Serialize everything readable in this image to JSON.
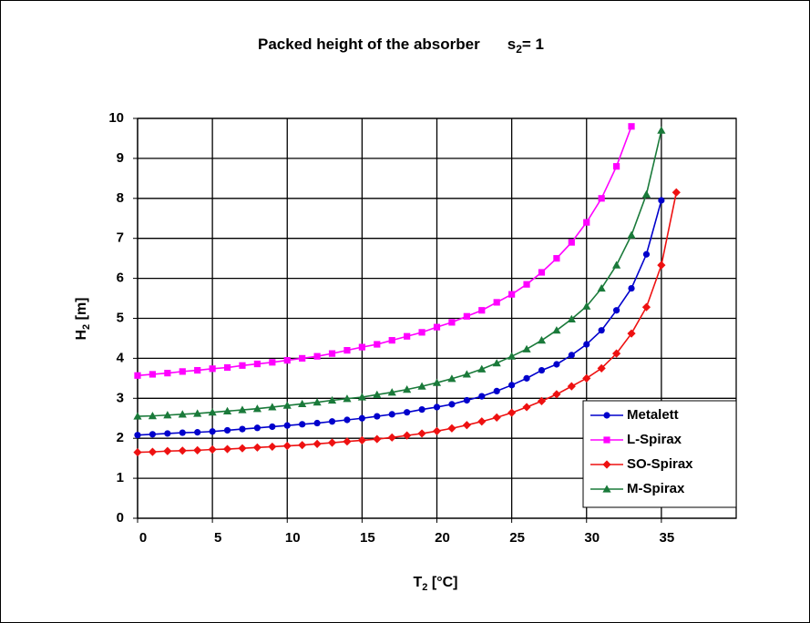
{
  "chart_data": {
    "type": "line",
    "title": "Packed height of the absorber",
    "title_param": {
      "symbol": "s",
      "subscript": "2",
      "text": "= 1"
    },
    "x_label": {
      "symbol": "T",
      "subscript": "2",
      "text": " [°C]"
    },
    "y_label": {
      "symbol": "H",
      "subscript": "2",
      "text": " [m]"
    },
    "xlim": [
      0,
      40
    ],
    "xticks": [
      0,
      5,
      10,
      15,
      20,
      25,
      30,
      35
    ],
    "ylim": [
      0,
      10
    ],
    "yticks": [
      0,
      1,
      2,
      3,
      4,
      5,
      6,
      7,
      8,
      9,
      10
    ],
    "grid": true,
    "legend": "lower right",
    "series": [
      {
        "name": "Metalett",
        "color": "#0000cc",
        "marker": "circle",
        "x": [
          0,
          1,
          2,
          3,
          4,
          5,
          6,
          7,
          8,
          9,
          10,
          11,
          12,
          13,
          14,
          15,
          16,
          17,
          18,
          19,
          20,
          21,
          22,
          23,
          24,
          25,
          26,
          27,
          28,
          29,
          30,
          31,
          32,
          33,
          34,
          35
        ],
        "values": [
          2.08,
          2.1,
          2.12,
          2.14,
          2.15,
          2.17,
          2.2,
          2.23,
          2.26,
          2.29,
          2.32,
          2.35,
          2.38,
          2.42,
          2.46,
          2.5,
          2.55,
          2.6,
          2.65,
          2.72,
          2.78,
          2.85,
          2.95,
          3.05,
          3.18,
          3.33,
          3.5,
          3.7,
          3.85,
          4.08,
          4.35,
          4.7,
          5.2,
          5.75,
          6.6,
          7.95
        ]
      },
      {
        "name": "L-Spirax",
        "color": "#ff00ff",
        "marker": "square",
        "x": [
          0,
          1,
          2,
          3,
          4,
          5,
          6,
          7,
          8,
          9,
          10,
          11,
          12,
          13,
          14,
          15,
          16,
          17,
          18,
          19,
          20,
          21,
          22,
          23,
          24,
          25,
          26,
          27,
          28,
          29,
          30,
          31,
          32,
          33
        ],
        "values": [
          3.57,
          3.6,
          3.63,
          3.67,
          3.7,
          3.74,
          3.77,
          3.82,
          3.86,
          3.9,
          3.95,
          4.0,
          4.05,
          4.12,
          4.2,
          4.28,
          4.35,
          4.45,
          4.55,
          4.65,
          4.78,
          4.9,
          5.05,
          5.2,
          5.4,
          5.6,
          5.85,
          6.15,
          6.5,
          6.9,
          7.4,
          8.0,
          8.8,
          9.8
        ]
      },
      {
        "name": "SO-Spirax",
        "color": "#ee1111",
        "marker": "diamond",
        "x": [
          0,
          1,
          2,
          3,
          4,
          5,
          6,
          7,
          8,
          9,
          10,
          11,
          12,
          13,
          14,
          15,
          16,
          17,
          18,
          19,
          20,
          21,
          22,
          23,
          24,
          25,
          26,
          27,
          28,
          29,
          30,
          31,
          32,
          33,
          34,
          35,
          36
        ],
        "values": [
          1.65,
          1.66,
          1.68,
          1.69,
          1.7,
          1.72,
          1.73,
          1.75,
          1.77,
          1.79,
          1.81,
          1.83,
          1.86,
          1.89,
          1.92,
          1.95,
          1.98,
          2.02,
          2.07,
          2.12,
          2.18,
          2.25,
          2.33,
          2.42,
          2.52,
          2.64,
          2.78,
          2.93,
          3.1,
          3.3,
          3.5,
          3.75,
          4.12,
          4.62,
          5.28,
          6.33,
          8.15
        ]
      },
      {
        "name": "M-Spirax",
        "color": "#1a7a3a",
        "marker": "triangle",
        "x": [
          0,
          1,
          2,
          3,
          4,
          5,
          6,
          7,
          8,
          9,
          10,
          11,
          12,
          13,
          14,
          15,
          16,
          17,
          18,
          19,
          20,
          21,
          22,
          23,
          24,
          25,
          26,
          27,
          28,
          29,
          30,
          31,
          32,
          33,
          34,
          35
        ],
        "values": [
          2.55,
          2.56,
          2.58,
          2.6,
          2.62,
          2.65,
          2.68,
          2.71,
          2.74,
          2.78,
          2.82,
          2.86,
          2.9,
          2.95,
          2.99,
          3.03,
          3.09,
          3.15,
          3.22,
          3.3,
          3.39,
          3.49,
          3.6,
          3.73,
          3.88,
          4.05,
          4.23,
          4.45,
          4.7,
          4.98,
          5.3,
          5.75,
          6.33,
          7.08,
          8.1,
          9.7
        ]
      }
    ]
  }
}
